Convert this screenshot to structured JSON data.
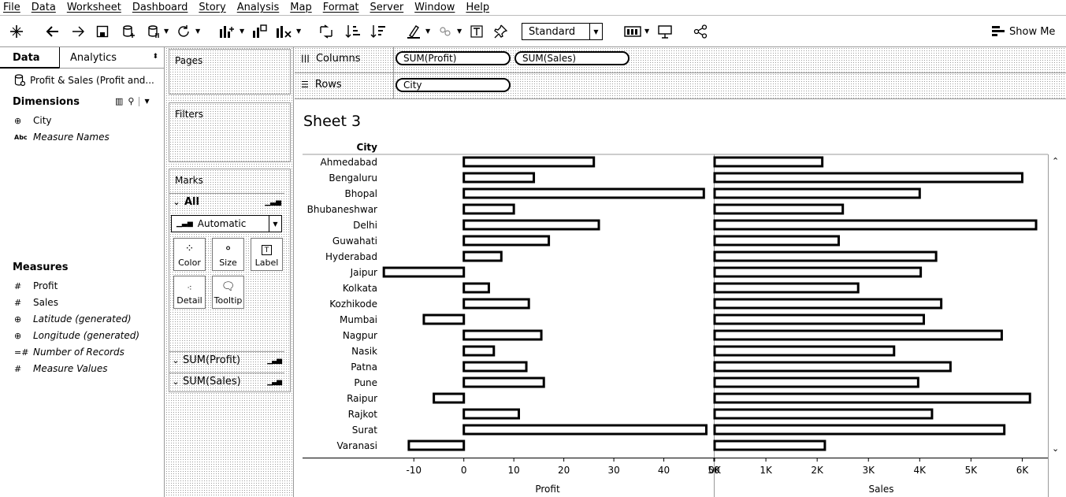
{
  "menu": [
    "File",
    "Data",
    "Worksheet",
    "Dashboard",
    "Story",
    "Analysis",
    "Map",
    "Format",
    "Server",
    "Window",
    "Help"
  ],
  "toolbar": {
    "fit_mode": "Standard",
    "show_me_label": "Show Me"
  },
  "data_pane": {
    "tab_data": "Data",
    "tab_analytics": "Analytics",
    "datasource": "Profit & Sales (Profit and...",
    "dimensions_label": "Dimensions",
    "dimensions": [
      {
        "name": "City",
        "icon": "globe-icon",
        "italic": false
      },
      {
        "name": "Measure Names",
        "icon": "abc-icon",
        "italic": true
      }
    ],
    "measures_label": "Measures",
    "measures": [
      {
        "name": "Profit",
        "icon": "hash-icon",
        "italic": false
      },
      {
        "name": "Sales",
        "icon": "hash-icon",
        "italic": false
      },
      {
        "name": "Latitude (generated)",
        "icon": "globe-icon",
        "italic": true
      },
      {
        "name": "Longitude (generated)",
        "icon": "globe-icon",
        "italic": true
      },
      {
        "name": "Number of Records",
        "icon": "hash-equals-icon",
        "italic": true
      },
      {
        "name": "Measure Values",
        "icon": "hash-icon",
        "italic": true
      }
    ]
  },
  "cards": {
    "pages_label": "Pages",
    "filters_label": "Filters",
    "marks_label": "Marks",
    "marks_all": "All",
    "mark_type": "Automatic",
    "buttons": {
      "color": "Color",
      "size": "Size",
      "label": "Label",
      "detail": "Detail",
      "tooltip": "Tooltip"
    },
    "measure_rows": [
      "SUM(Profit)",
      "SUM(Sales)"
    ]
  },
  "shelves": {
    "columns_label": "Columns",
    "rows_label": "Rows",
    "columns_pills": [
      "SUM(Profit)",
      "SUM(Sales)"
    ],
    "rows_pill": "City"
  },
  "sheet": {
    "title": "Sheet 3",
    "row_header": "City"
  },
  "chart_data": {
    "type": "bar",
    "orientation": "horizontal",
    "categories": [
      "Ahmedabad",
      "Bengaluru",
      "Bhopal",
      "Bhubaneshwar",
      "Delhi",
      "Guwahati",
      "Hyderabad",
      "Jaipur",
      "Kolkata",
      "Kozhikode",
      "Mumbai",
      "Nagpur",
      "Nasik",
      "Patna",
      "Pune",
      "Raipur",
      "Rajkot",
      "Surat",
      "Varanasi"
    ],
    "series": [
      {
        "name": "Profit",
        "xlabel": "Profit",
        "xlim": [
          -16.5,
          50
        ],
        "ticks": [
          -10,
          0,
          10,
          20,
          30,
          40,
          50
        ],
        "tick_labels": [
          "-10",
          "0",
          "10",
          "20",
          "30",
          "40",
          "50"
        ],
        "values": [
          26,
          14,
          48,
          10,
          27,
          17,
          7.5,
          -16,
          5,
          13,
          -8,
          15.5,
          6,
          12.5,
          16,
          -6,
          11,
          48.5,
          -11
        ]
      },
      {
        "name": "Sales",
        "xlabel": "Sales",
        "xlim": [
          0,
          6500
        ],
        "ticks": [
          0,
          1000,
          2000,
          3000,
          4000,
          5000,
          6000
        ],
        "tick_labels": [
          "0K",
          "1K",
          "2K",
          "3K",
          "4K",
          "5K",
          "6K"
        ],
        "values": [
          2100,
          6000,
          4000,
          2500,
          6270,
          2420,
          4320,
          4020,
          2800,
          4420,
          4080,
          5600,
          3500,
          4600,
          3970,
          6150,
          4240,
          5650,
          2150
        ]
      }
    ]
  }
}
